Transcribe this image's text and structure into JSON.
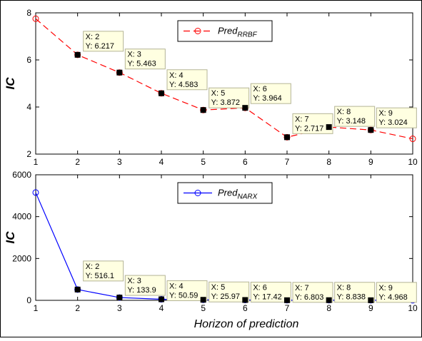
{
  "figure": {
    "xlabel": "Horizon of prediction"
  },
  "chart_data": [
    {
      "type": "line",
      "ylabel": "IC",
      "xlim": [
        1,
        10
      ],
      "ylim": [
        2,
        8
      ],
      "xticks": [
        1,
        2,
        3,
        4,
        5,
        6,
        7,
        8,
        9,
        10
      ],
      "yticks": [
        2,
        4,
        6,
        8
      ],
      "grid": false,
      "legend_position": "top-right",
      "series": [
        {
          "name_main": "Pred",
          "name_sub": "RRBF",
          "color": "#ff0000",
          "line_style": "dashed",
          "marker": "circle",
          "x": [
            1,
            2,
            3,
            4,
            5,
            6,
            7,
            8,
            9,
            10
          ],
          "values": [
            7.75,
            6.217,
            5.463,
            4.583,
            3.872,
            3.964,
            2.717,
            3.148,
            3.024,
            2.65
          ]
        }
      ],
      "datatips": [
        {
          "x": 2,
          "xtext": "X: 2",
          "ytext": "Y: 6.217"
        },
        {
          "x": 3,
          "xtext": "X: 3",
          "ytext": "Y: 5.463"
        },
        {
          "x": 4,
          "xtext": "X: 4",
          "ytext": "Y: 4.583"
        },
        {
          "x": 5,
          "xtext": "X: 5",
          "ytext": "Y: 3.872"
        },
        {
          "x": 6,
          "xtext": "X: 6",
          "ytext": "Y: 3.964"
        },
        {
          "x": 7,
          "xtext": "X: 7",
          "ytext": "Y: 2.717"
        },
        {
          "x": 8,
          "xtext": "X: 8",
          "ytext": "Y: 3.148"
        },
        {
          "x": 9,
          "xtext": "X: 9",
          "ytext": "Y: 3.024"
        }
      ]
    },
    {
      "type": "line",
      "ylabel": "IC",
      "xlim": [
        1,
        10
      ],
      "ylim": [
        0,
        6000
      ],
      "xticks": [
        1,
        2,
        3,
        4,
        5,
        6,
        7,
        8,
        9,
        10
      ],
      "yticks": [
        0,
        2000,
        4000,
        6000
      ],
      "grid": false,
      "legend_position": "top-right",
      "series": [
        {
          "name_main": "Pred",
          "name_sub": "NARX",
          "color": "#0000ff",
          "line_style": "solid",
          "marker": "circle",
          "x": [
            1,
            2,
            3,
            4,
            5,
            6,
            7,
            8,
            9,
            10
          ],
          "values": [
            5150,
            516.1,
            133.9,
            50.59,
            25.97,
            17.42,
            6.803,
            8.838,
            4.968,
            3
          ]
        }
      ],
      "datatips": [
        {
          "x": 2,
          "xtext": "X: 2",
          "ytext": "Y: 516.1"
        },
        {
          "x": 3,
          "xtext": "X: 3",
          "ytext": "Y: 133.9"
        },
        {
          "x": 4,
          "xtext": "X: 4",
          "ytext": "Y: 50.59"
        },
        {
          "x": 5,
          "xtext": "X: 5",
          "ytext": "Y: 25.97"
        },
        {
          "x": 6,
          "xtext": "X: 6",
          "ytext": "Y: 17.42"
        },
        {
          "x": 7,
          "xtext": "X: 7",
          "ytext": "Y: 6.803"
        },
        {
          "x": 8,
          "xtext": "X: 8",
          "ytext": "Y: 8.838"
        },
        {
          "x": 9,
          "xtext": "X: 9",
          "ytext": "Y: 4.968"
        }
      ]
    }
  ]
}
